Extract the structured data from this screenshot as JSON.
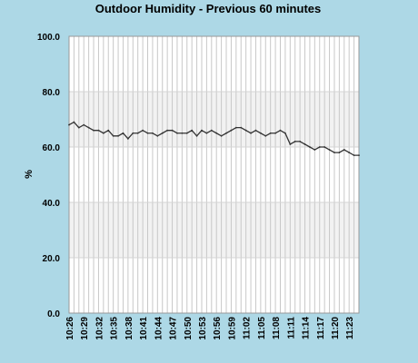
{
  "chart_data": {
    "type": "line",
    "title": "Outdoor Humidity - Previous 60 minutes",
    "ylabel": "%",
    "xlabel": "",
    "ylim": [
      0,
      100
    ],
    "y_ticks": [
      "0.0",
      "20.0",
      "40.0",
      "60.0",
      "80.0",
      "100.0"
    ],
    "x_tick_labels": [
      "10:26",
      "10:29",
      "10:32",
      "10:35",
      "10:38",
      "10:41",
      "10:44",
      "10:47",
      "10:50",
      "10:53",
      "10:56",
      "10:59",
      "11:02",
      "11:05",
      "11:08",
      "11:11",
      "11:14",
      "11:17",
      "11:20",
      "11:23"
    ],
    "grid": true,
    "band_colors": [
      "#ffffff",
      "#f2f2f2"
    ],
    "line_color": "#333333",
    "series": [
      {
        "values": [
          68,
          69,
          67,
          68,
          67,
          66,
          66,
          65,
          66,
          64,
          64,
          65,
          63,
          65,
          65,
          66,
          65,
          65,
          64,
          65,
          66,
          66,
          65,
          65,
          65,
          66,
          64,
          66,
          65,
          66,
          65,
          64,
          65,
          66,
          67,
          67,
          66,
          65,
          66,
          65,
          64,
          65,
          65,
          66,
          65,
          61,
          62,
          62,
          61,
          60,
          59,
          60,
          60,
          59,
          58,
          58,
          59,
          58,
          57,
          57
        ]
      }
    ]
  }
}
